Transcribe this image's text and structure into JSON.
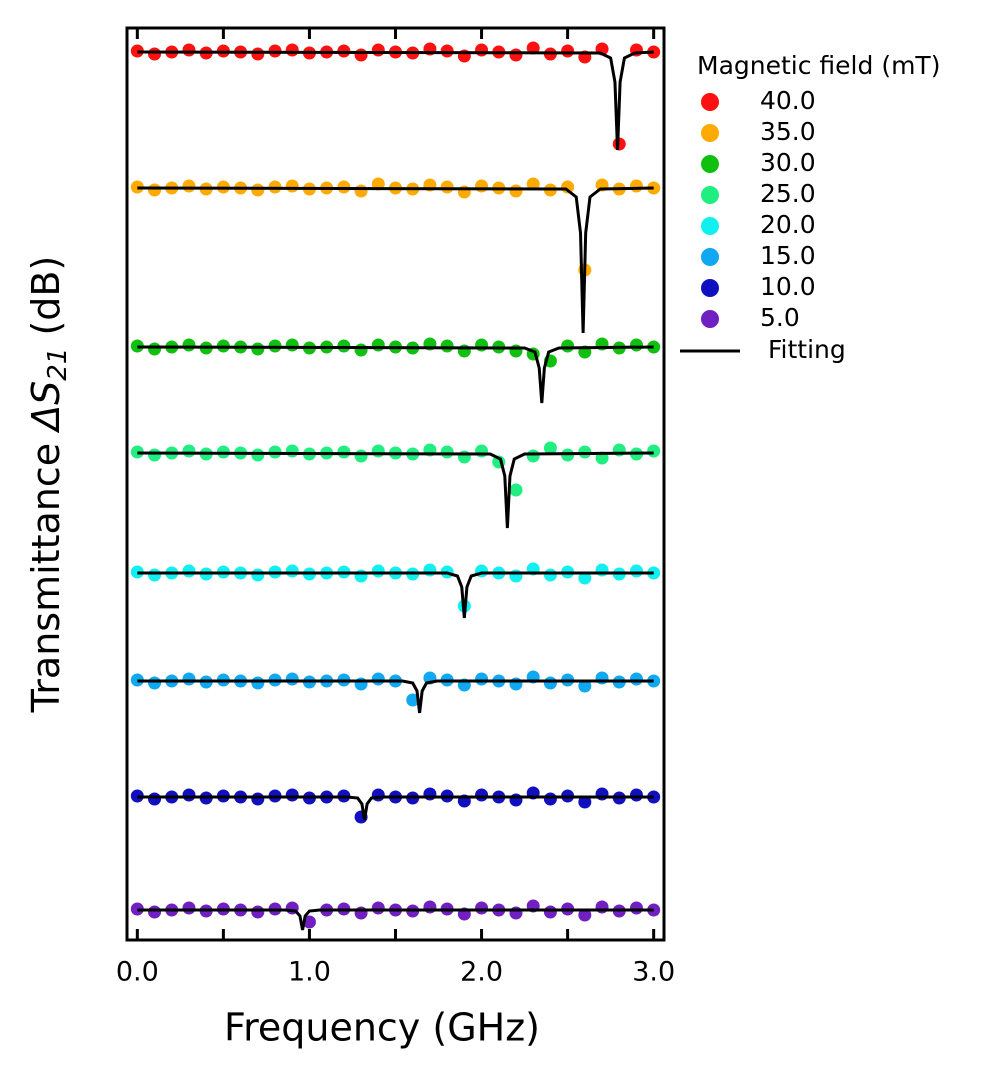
{
  "chart_data": {
    "type": "scatter",
    "xlabel": "Frequency (GHz)",
    "ylabel": [
      "Transmittance ",
      "ΔS",
      "21",
      " (dB)"
    ],
    "legend_title": "Magnetic field (mT)",
    "legend_position": "outside right",
    "fit_label": "Fitting",
    "fit_color": "#000000",
    "xlim": [
      -0.06,
      3.06
    ],
    "ylim": [
      0,
      91.2
    ],
    "xticks": [
      {
        "value": 0,
        "label": "0.0"
      },
      {
        "value": 1,
        "label": "1.0"
      },
      {
        "value": 2,
        "label": "2.0"
      },
      {
        "value": 3,
        "label": "3.0"
      }
    ],
    "xminorticks": [
      0.5,
      1.5,
      2.5
    ],
    "x": [
      0.0,
      0.1,
      0.2,
      0.3,
      0.4,
      0.5,
      0.6,
      0.7,
      0.8,
      0.9,
      1.0,
      1.1,
      1.2,
      1.3,
      1.4,
      1.5,
      1.6,
      1.7,
      1.8,
      1.9,
      2.0,
      2.1,
      2.2,
      2.3,
      2.4,
      2.5,
      2.6,
      2.7,
      2.8,
      2.9,
      3.0
    ],
    "series": [
      {
        "name": "40.0",
        "color": "#ff1010",
        "values": [
          88.9,
          88.6,
          88.8,
          89.0,
          88.7,
          88.9,
          88.8,
          88.6,
          88.9,
          89.0,
          88.7,
          88.8,
          88.9,
          88.5,
          89.0,
          88.8,
          88.7,
          89.1,
          88.9,
          88.4,
          89.0,
          88.8,
          88.5,
          89.2,
          88.6,
          88.9,
          88.3,
          89.1,
          79.6,
          89.0,
          88.8
        ],
        "fit_x": [
          0.0,
          2.69,
          2.75,
          2.775,
          2.79,
          2.805,
          2.83,
          2.89,
          3.0
        ],
        "fit_values": [
          88.8,
          88.7,
          88.2,
          85.8,
          79.0,
          85.8,
          88.2,
          88.7,
          88.8
        ]
      },
      {
        "name": "35.0",
        "color": "#ffaa00",
        "values": [
          75.3,
          75.0,
          75.2,
          75.4,
          75.1,
          75.3,
          75.2,
          75.0,
          75.3,
          75.4,
          75.1,
          75.2,
          75.3,
          74.9,
          75.6,
          75.2,
          75.1,
          75.5,
          75.3,
          74.8,
          75.4,
          75.2,
          74.9,
          75.6,
          75.0,
          75.3,
          67.0,
          75.5,
          75.1,
          75.4,
          75.2
        ],
        "fit_x": [
          0.0,
          2.49,
          2.55,
          2.575,
          2.59,
          2.605,
          2.63,
          2.69,
          3.0
        ],
        "fit_values": [
          75.2,
          75.1,
          74.3,
          70.7,
          60.7,
          70.7,
          74.3,
          75.1,
          75.2
        ]
      },
      {
        "name": "30.0",
        "color": "#10c010",
        "values": [
          59.4,
          59.1,
          59.3,
          59.5,
          59.2,
          59.4,
          59.3,
          59.1,
          59.4,
          59.5,
          59.2,
          59.3,
          59.4,
          59.0,
          59.5,
          59.3,
          59.2,
          59.6,
          59.4,
          58.9,
          59.5,
          59.3,
          58.9,
          58.6,
          57.9,
          59.4,
          58.8,
          59.6,
          59.2,
          59.5,
          59.3
        ],
        "fit_x": [
          0.0,
          2.25,
          2.31,
          2.335,
          2.35,
          2.365,
          2.39,
          2.45,
          3.0
        ],
        "fit_values": [
          59.3,
          59.2,
          58.8,
          57.2,
          53.7,
          57.2,
          58.8,
          59.2,
          59.3
        ]
      },
      {
        "name": "25.0",
        "color": "#20ee80",
        "values": [
          48.8,
          48.5,
          48.7,
          48.9,
          48.6,
          48.8,
          48.7,
          48.5,
          48.8,
          48.9,
          48.6,
          48.7,
          48.8,
          48.4,
          48.9,
          48.7,
          48.6,
          49.0,
          48.8,
          48.3,
          48.9,
          47.8,
          45.0,
          48.4,
          49.2,
          48.5,
          48.8,
          48.2,
          49.0,
          48.6,
          48.9
        ],
        "fit_x": [
          0.0,
          2.05,
          2.11,
          2.135,
          2.15,
          2.165,
          2.19,
          2.25,
          3.0
        ],
        "fit_values": [
          48.7,
          48.6,
          48.1,
          46.4,
          41.2,
          46.4,
          48.1,
          48.6,
          48.7
        ]
      },
      {
        "name": "20.0",
        "color": "#10f0f0",
        "values": [
          36.8,
          36.5,
          36.7,
          36.9,
          36.6,
          36.8,
          36.7,
          36.5,
          36.8,
          36.9,
          36.6,
          36.7,
          36.8,
          36.4,
          36.9,
          36.7,
          36.6,
          37.0,
          36.8,
          33.4,
          36.9,
          36.7,
          36.4,
          37.1,
          36.5,
          36.8,
          36.2,
          37.0,
          36.6,
          36.9,
          36.7
        ],
        "fit_x": [
          0.0,
          1.8,
          1.86,
          1.885,
          1.9,
          1.915,
          1.94,
          2.0,
          3.0
        ],
        "fit_values": [
          36.7,
          36.7,
          36.4,
          35.3,
          32.2,
          35.3,
          36.4,
          36.7,
          36.7
        ]
      },
      {
        "name": "15.0",
        "color": "#10a8f0",
        "values": [
          26.0,
          25.7,
          25.9,
          26.1,
          25.8,
          26.0,
          25.9,
          25.7,
          26.0,
          26.1,
          25.8,
          25.9,
          26.0,
          25.6,
          26.1,
          25.9,
          24.0,
          26.2,
          26.0,
          25.5,
          26.1,
          25.9,
          25.6,
          26.3,
          25.7,
          26.0,
          25.4,
          26.2,
          25.8,
          26.1,
          25.9
        ],
        "fit_x": [
          0.0,
          1.54,
          1.6,
          1.625,
          1.64,
          1.655,
          1.68,
          1.74,
          3.0
        ],
        "fit_values": [
          25.9,
          25.9,
          25.7,
          24.9,
          22.7,
          24.9,
          25.7,
          25.9,
          25.9
        ]
      },
      {
        "name": "10.0",
        "color": "#1010c0",
        "values": [
          14.4,
          14.1,
          14.3,
          14.5,
          14.2,
          14.4,
          14.3,
          14.1,
          14.4,
          14.5,
          14.2,
          14.3,
          14.4,
          12.3,
          14.5,
          14.3,
          14.2,
          14.6,
          14.4,
          13.9,
          14.5,
          14.3,
          14.0,
          14.7,
          14.1,
          14.4,
          13.8,
          14.6,
          14.2,
          14.5,
          14.3
        ],
        "fit_x": [
          0.0,
          1.22,
          1.28,
          1.305,
          1.32,
          1.335,
          1.36,
          1.42,
          3.0
        ],
        "fit_values": [
          14.3,
          14.3,
          14.2,
          13.6,
          12.0,
          13.6,
          14.2,
          14.3,
          14.3
        ]
      },
      {
        "name": "5.0",
        "color": "#7020c0",
        "values": [
          3.1,
          2.8,
          3.0,
          3.2,
          2.9,
          3.1,
          3.0,
          2.8,
          3.1,
          3.2,
          1.8,
          3.0,
          3.1,
          2.7,
          3.2,
          3.0,
          2.9,
          3.3,
          3.1,
          2.6,
          3.2,
          3.0,
          2.7,
          3.4,
          2.8,
          3.1,
          2.5,
          3.3,
          2.9,
          3.2,
          3.0
        ],
        "fit_x": [
          0.0,
          0.86,
          0.92,
          0.945,
          0.96,
          0.975,
          1.0,
          1.06,
          3.0
        ],
        "fit_values": [
          3.0,
          3.0,
          2.9,
          2.4,
          1.0,
          2.4,
          2.9,
          3.0,
          3.0
        ]
      }
    ]
  }
}
